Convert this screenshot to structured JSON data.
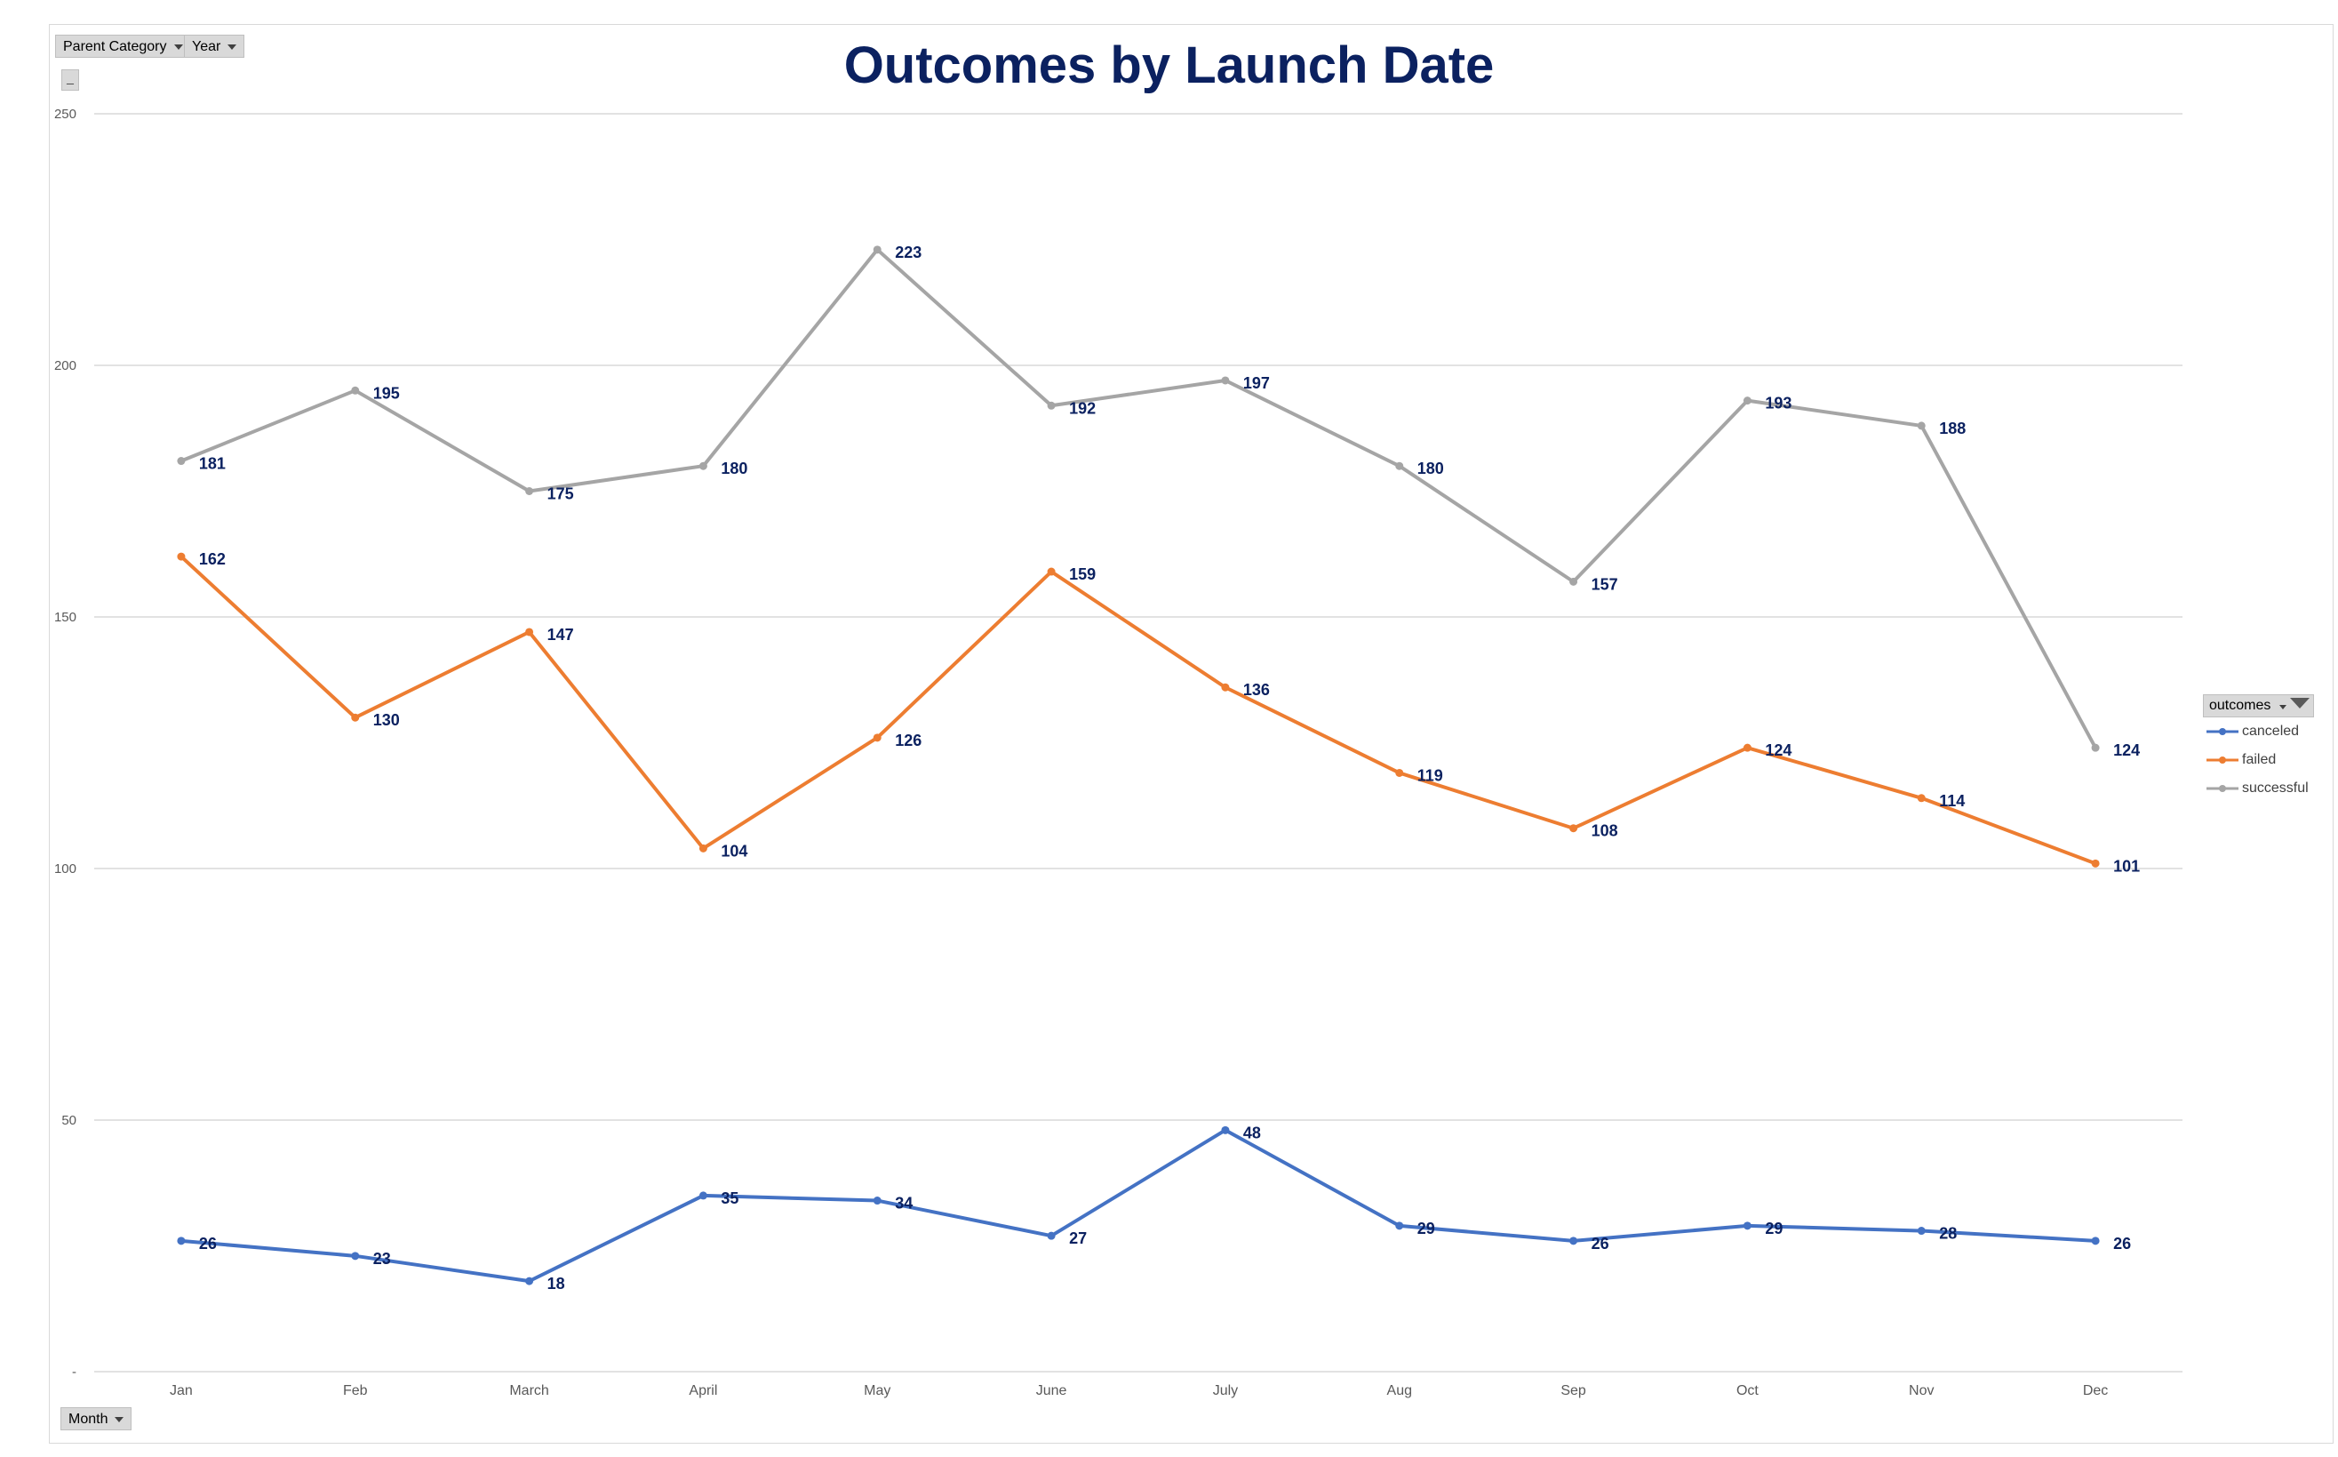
{
  "pivot_fields": {
    "filters": [
      "Parent Category",
      "Year"
    ],
    "axis_field": "Month",
    "collapse_label": "_"
  },
  "legend": {
    "title": "outcomes"
  },
  "colors": {
    "canceled": "#4472c4",
    "failed": "#ed7d31",
    "successful": "#a5a5a5",
    "title": "#0b2160",
    "data_label": "#0b2160",
    "gridline": "#d9d9d9",
    "axis_text": "#595959"
  },
  "chart_data": {
    "type": "line",
    "title": "Outcomes by Launch Date",
    "xlabel": "",
    "ylabel": "",
    "categories": [
      "Jan",
      "Feb",
      "March",
      "April",
      "May",
      "June",
      "July",
      "Aug",
      "Sep",
      "Oct",
      "Nov",
      "Dec"
    ],
    "ylim": [
      0,
      250
    ],
    "yticks": [
      0,
      50,
      100,
      150,
      200,
      250
    ],
    "ytick_labels": [
      "-",
      "50",
      "100",
      "150",
      "200",
      "250"
    ],
    "grid": true,
    "legend_position": "right",
    "data_labels": true,
    "series": [
      {
        "name": "canceled",
        "values": [
          26,
          23,
          18,
          35,
          34,
          27,
          48,
          29,
          26,
          29,
          28,
          26
        ]
      },
      {
        "name": "failed",
        "values": [
          162,
          130,
          147,
          104,
          126,
          159,
          136,
          119,
          108,
          124,
          114,
          101
        ]
      },
      {
        "name": "successful",
        "values": [
          181,
          195,
          175,
          180,
          223,
          192,
          197,
          180,
          157,
          193,
          188,
          124
        ]
      }
    ]
  }
}
